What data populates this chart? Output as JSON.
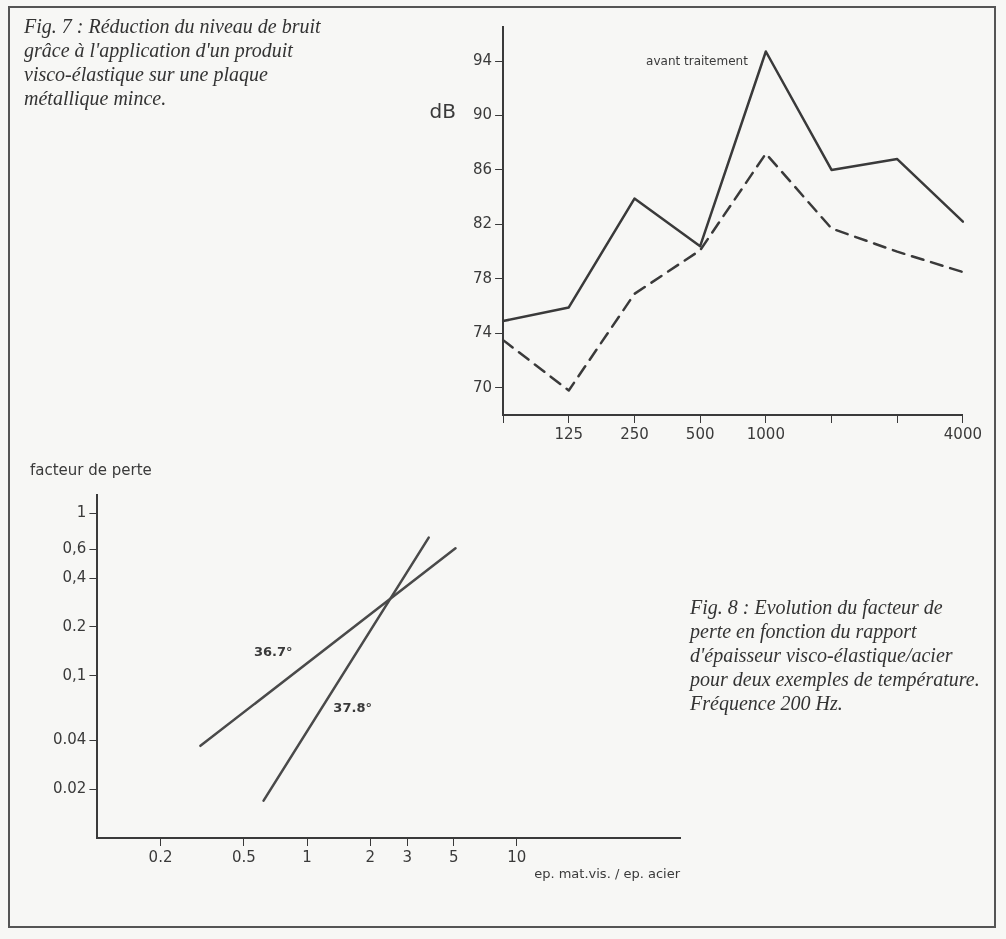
{
  "chart_data": [
    {
      "type": "line",
      "ylabel": "dB",
      "categories": [
        null,
        "125",
        "250",
        "500",
        "1000",
        null,
        null,
        "4000"
      ],
      "series": [
        {
          "color": "#3a3a3a",
          "line_style": "solid",
          "values": [
            74.9,
            75.9,
            83.9,
            80.4,
            94.7,
            86.0,
            86.8,
            82.2
          ]
        },
        {
          "color": "#3a3a3a",
          "line_style": "dashed",
          "values": [
            73.5,
            69.8,
            76.9,
            80.1,
            87.2,
            81.7,
            80.0,
            78.5
          ]
        }
      ],
      "ylim": [
        68,
        96.5
      ],
      "yticks": [
        70,
        74,
        78,
        82,
        86,
        90,
        94
      ],
      "grid": false,
      "annotations": [
        "Fig. 7 : Réduction du niveau de bruit grâce à l'application d'un produit visco-élastique sur une plaque métallique mince.",
        {
          "text": "avant traitement",
          "x": "1000",
          "y": 94.7
        }
      ]
    },
    {
      "type": "line",
      "annotations": [
        "Fig. 8 : Evolution du facteur de perte en fonction du rapport d'épaisseur visco-élastique/acier pour deux exemples de température. Fréquence 200 Hz."
      ],
      "xlabel": "ep. mat.vis. / ep. acier",
      "ylabel": "facteur de perte",
      "log": "xy",
      "series": [
        {
          "name": "36.7°",
          "color": "#4a4a4a",
          "x": [
            0.31,
            5.1
          ],
          "values": [
            0.037,
            0.61
          ]
        },
        {
          "name": "37.8°",
          "color": "#4a4a4a",
          "x": [
            0.62,
            3.8
          ],
          "values": [
            0.017,
            0.71
          ]
        }
      ],
      "xlim": [
        0.1,
        60
      ],
      "xticks": [
        0.2,
        0.5,
        1,
        2,
        3,
        5,
        10
      ],
      "ylim": [
        0.01,
        1.3
      ],
      "yticks": [
        {
          "value": 0.02,
          "label": "0.02"
        },
        {
          "value": 0.04,
          "label": "0.04"
        },
        {
          "value": 0.1,
          "label": "0,1"
        },
        {
          "value": 0.2,
          "label": "0.2"
        },
        {
          "value": 0.4,
          "label": "0,4"
        },
        {
          "value": 0.6,
          "label": "0,6"
        },
        1
      ],
      "grid": false
    }
  ]
}
